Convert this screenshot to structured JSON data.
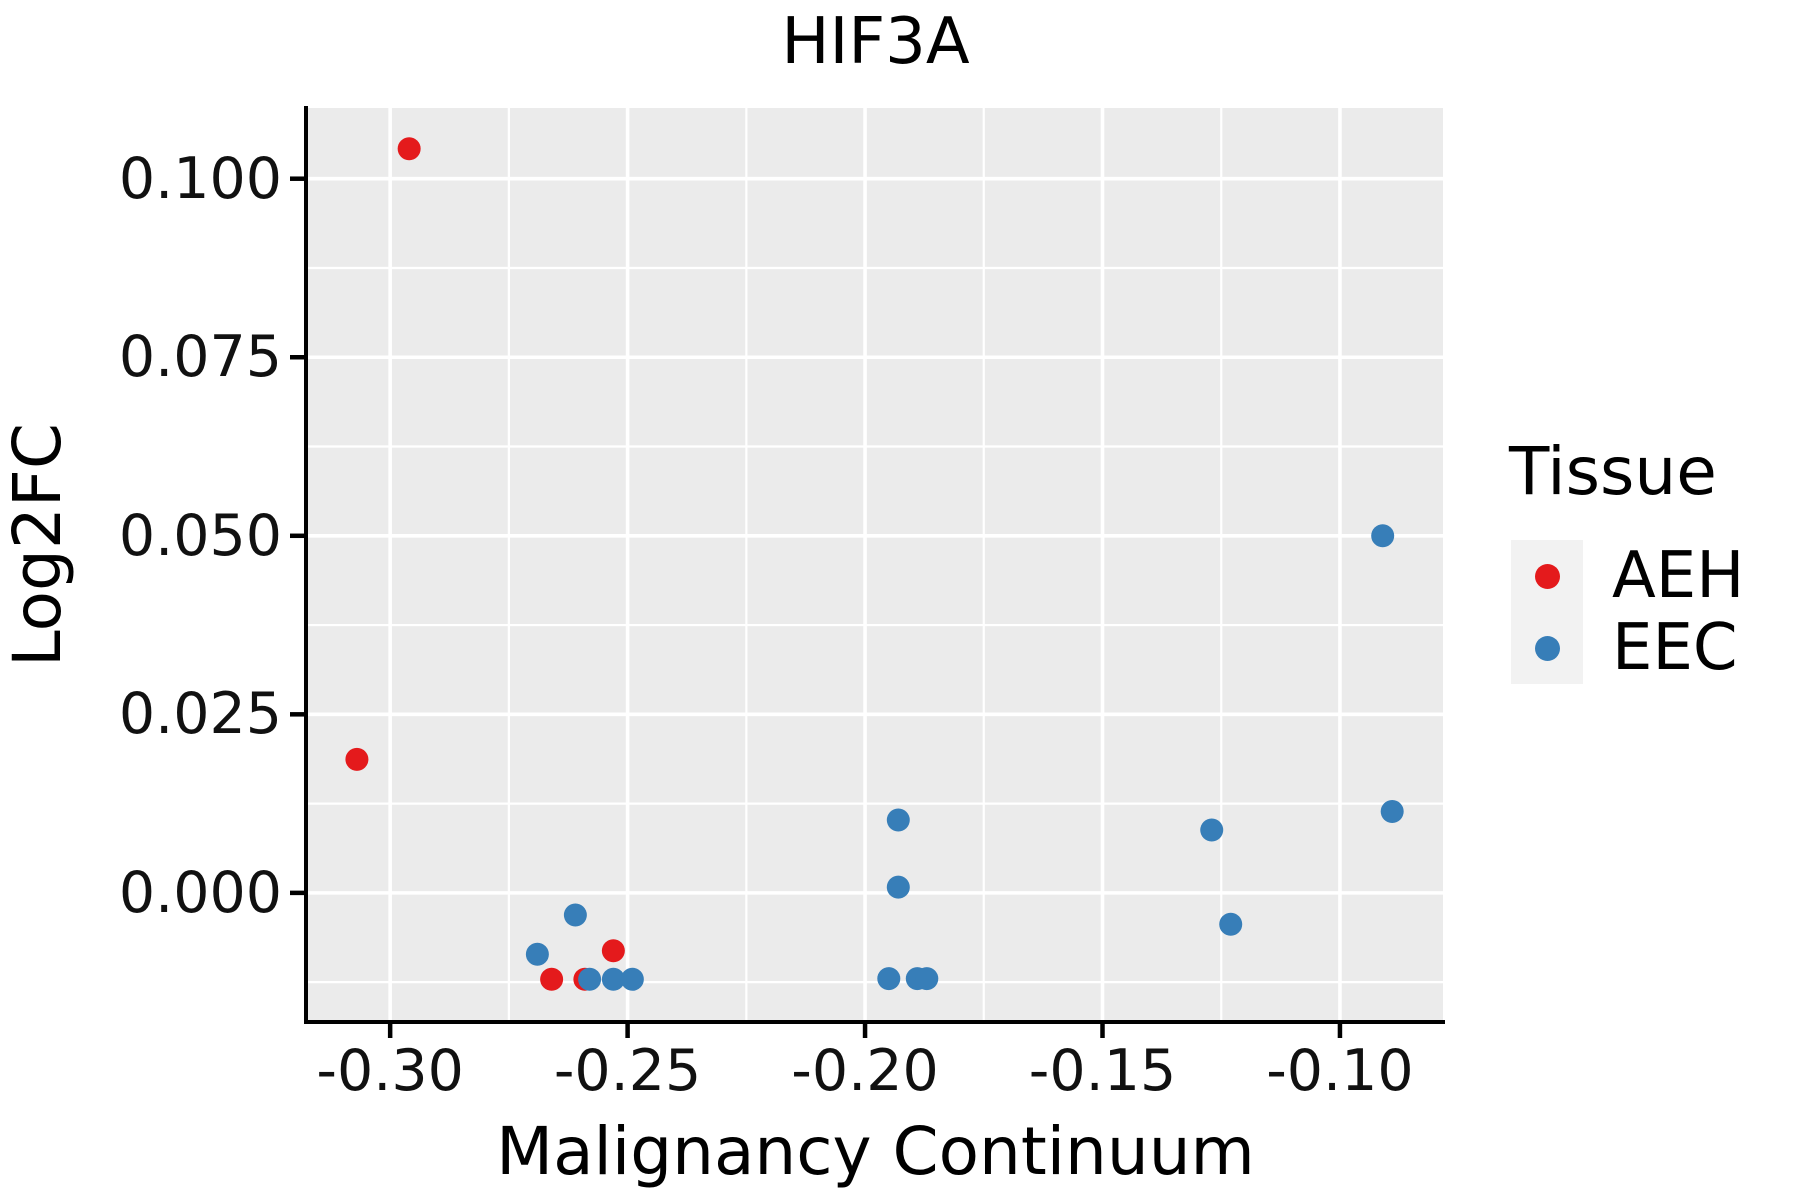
{
  "title": "HIF3A",
  "colors": {
    "panel_bg": "#EBEBEB",
    "grid": "#FFFFFF",
    "axis": "#000000",
    "tick_text": "#111111",
    "legend_key_bg": "#F2F2F2",
    "aeh": "#E41A1C",
    "eec": "#377EB8"
  },
  "legend": {
    "title": "Tissue",
    "entries": [
      {
        "label": "AEH",
        "color_key": "aeh",
        "marker": "dot"
      },
      {
        "label": "EEC",
        "color_key": "eec",
        "marker": "dot"
      }
    ]
  },
  "chart_data": {
    "type": "scatter",
    "title": "HIF3A",
    "xlabel": "Malignancy Continuum",
    "ylabel": "Log2FC",
    "xlim": [
      -0.3173,
      -0.0783
    ],
    "ylim": [
      -0.0178,
      0.1099
    ],
    "xticks": {
      "values": [
        -0.3,
        -0.25,
        -0.2,
        -0.15,
        -0.1
      ],
      "labels": [
        "-0.30",
        "-0.25",
        "-0.20",
        "-0.15",
        "-0.10"
      ]
    },
    "yticks": {
      "values": [
        0.0,
        0.025,
        0.05,
        0.075,
        0.1
      ],
      "labels": [
        "0.000",
        "0.025",
        "0.050",
        "0.075",
        "0.100"
      ]
    },
    "grid": {
      "major": true,
      "minor": true,
      "position": "midway-between-majors"
    },
    "legend_position": "right",
    "series": [
      {
        "name": "AEH",
        "color_key": "aeh",
        "points": [
          [
            -0.296,
            0.1042
          ],
          [
            -0.307,
            0.0187
          ],
          [
            -0.266,
            -0.0121
          ],
          [
            -0.259,
            -0.0121
          ],
          [
            -0.253,
            -0.0081
          ]
        ]
      },
      {
        "name": "EEC",
        "color_key": "eec",
        "points": [
          [
            -0.269,
            -0.0086
          ],
          [
            -0.261,
            -0.0031
          ],
          [
            -0.258,
            -0.0121
          ],
          [
            -0.253,
            -0.0121
          ],
          [
            -0.249,
            -0.0121
          ],
          [
            -0.195,
            -0.012
          ],
          [
            -0.193,
            0.0102
          ],
          [
            -0.193,
            0.0008
          ],
          [
            -0.189,
            -0.012
          ],
          [
            -0.187,
            -0.012
          ],
          [
            -0.127,
            0.0088
          ],
          [
            -0.123,
            -0.0044
          ],
          [
            -0.091,
            0.05
          ],
          [
            -0.089,
            0.0114
          ]
        ]
      }
    ]
  }
}
